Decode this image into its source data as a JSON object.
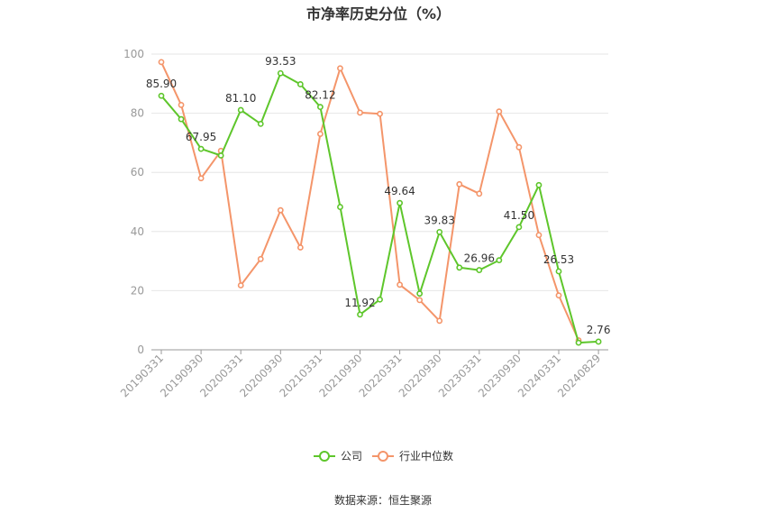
{
  "chart_data": {
    "type": "line",
    "title": "市净率历史分位（%）",
    "ylim": [
      0,
      100
    ],
    "yticks": [
      0,
      20,
      40,
      60,
      80,
      100
    ],
    "grid": true,
    "legend_position": "bottom-center",
    "x": [
      "20190331",
      "20190630",
      "20190930",
      "20191231",
      "20200331",
      "20200630",
      "20200930",
      "20201231",
      "20210331",
      "20210630",
      "20210930",
      "20211231",
      "20220331",
      "20220630",
      "20220930",
      "20221231",
      "20230331",
      "20230630",
      "20230930",
      "20231231",
      "20240331",
      "20240630",
      "20240829"
    ],
    "xtick_labels": [
      "20190331",
      "20190930",
      "20200331",
      "20200930",
      "20210331",
      "20210930",
      "20220331",
      "20220930",
      "20230331",
      "20230930",
      "20240331",
      "20240829"
    ],
    "series": [
      {
        "name": "公司",
        "color": "#5ec62b",
        "values": [
          85.9,
          78.0,
          67.95,
          65.7,
          81.1,
          76.4,
          93.53,
          89.8,
          82.12,
          48.3,
          11.92,
          17.0,
          49.64,
          19.0,
          39.83,
          27.8,
          26.96,
          30.3,
          41.5,
          55.7,
          26.53,
          2.4,
          2.76
        ],
        "labels": {
          "0": "85.90",
          "2": "67.95",
          "4": "81.10",
          "6": "93.53",
          "8": "82.12",
          "10": "11.92",
          "12": "49.64",
          "14": "39.83",
          "16": "26.96",
          "18": "41.50",
          "20": "26.53",
          "22": "2.76"
        }
      },
      {
        "name": "行业中位数",
        "color": "#f4956a",
        "values": [
          97.3,
          82.8,
          58.0,
          67.3,
          21.8,
          30.7,
          47.2,
          34.6,
          73.0,
          95.2,
          80.2,
          79.8,
          22.0,
          16.8,
          9.8,
          56.0,
          52.8,
          80.6,
          68.5,
          38.8,
          18.4,
          3.2,
          null
        ]
      }
    ],
    "source": "数据来源：恒生聚源"
  }
}
